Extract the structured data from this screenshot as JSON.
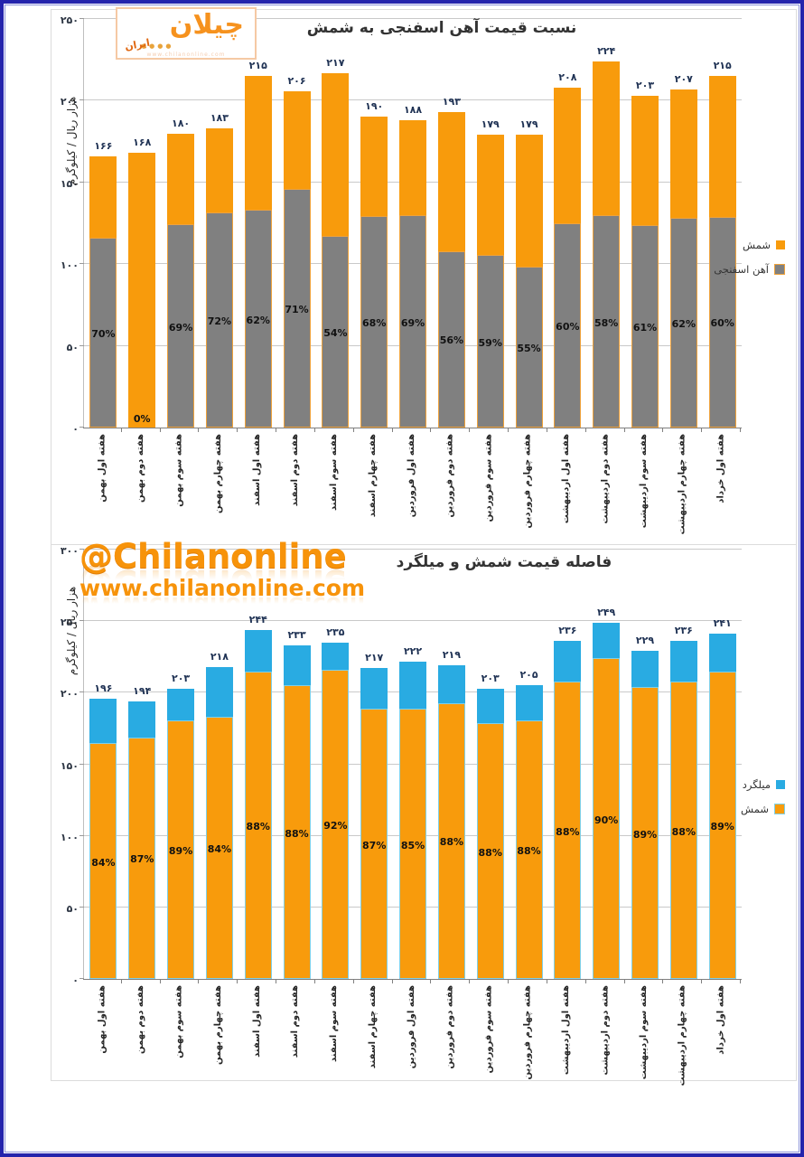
{
  "page": {
    "frame_color": "#2424AC",
    "background": "#FFFFFF"
  },
  "logo": {
    "text": "چیلان",
    "sub_text": "ایران",
    "url": "www.chilanonline.com"
  },
  "watermark": {
    "handle": "@Chilanonline",
    "url": "www.chilanonline.com"
  },
  "chart_data": [
    {
      "id": "sponge-iron-to-ingot-ratio",
      "type": "bar",
      "title": "نسبت قیمت آهن اسفنجی به شمش",
      "ylabel": "هزار ریال / کیلوگرم",
      "ylim": [
        0,
        250
      ],
      "y_ticks": [
        0,
        50,
        100,
        150,
        200,
        250
      ],
      "digit_style": "persian",
      "grid": true,
      "legend_position": "right",
      "categories": [
        "هفته اول بهمن",
        "هفته دوم بهمن",
        "هفته سوم بهمن",
        "هفته چهارم بهمن",
        "هفته اول اسفند",
        "هفته دوم اسفند",
        "هفته سوم اسفند",
        "هفته چهارم اسفند",
        "هفته اول فروردین",
        "هفته دوم فروردین",
        "هفته سوم فروردین",
        "هفته چهارم فروردین",
        "هفته اول اردیبهشت",
        "هفته دوم اردیبهشت",
        "هفته سوم اردیبهشت",
        "هفته چهارم اردیبهشت",
        "هفته اول خرداد"
      ],
      "series": [
        {
          "name": "شمش",
          "role": "total-bar",
          "color": "#F89B0C",
          "values": [
            166,
            168,
            180,
            183,
            215,
            206,
            217,
            190,
            188,
            193,
            179,
            179,
            208,
            224,
            203,
            207,
            215
          ]
        },
        {
          "name": "آهن اسفنجی",
          "role": "inner-bar-percent-of-total",
          "color": "#808080",
          "border_color": "#EFA23B",
          "percent_of_total": [
            70,
            0,
            69,
            72,
            62,
            71,
            54,
            68,
            69,
            56,
            59,
            55,
            60,
            58,
            61,
            62,
            60
          ]
        }
      ]
    },
    {
      "id": "ingot-to-rebar-gap",
      "type": "bar",
      "title": "فاصله قیمت شمش و میلگرد",
      "ylabel": "هزار ریال / کیلوگرم",
      "ylim": [
        0,
        300
      ],
      "y_ticks": [
        0,
        50,
        100,
        150,
        200,
        250,
        300
      ],
      "digit_style": "persian",
      "grid": true,
      "legend_position": "right",
      "categories": [
        "هفته اول بهمن",
        "هفته دوم بهمن",
        "هفته سوم بهمن",
        "هفته چهارم بهمن",
        "هفته اول اسفند",
        "هفته دوم اسفند",
        "هفته سوم اسفند",
        "هفته چهارم اسفند",
        "هفته اول فروردین",
        "هفته دوم فروردین",
        "هفته سوم فروردین",
        "هفته چهارم فروردین",
        "هفته اول اردیبهشت",
        "هفته دوم اردیبهشت",
        "هفته سوم اردیبهشت",
        "هفته چهارم اردیبهشت",
        "هفته اول خرداد"
      ],
      "series": [
        {
          "name": "میلگرد",
          "role": "total-bar",
          "color": "#29ABE2",
          "values": [
            196,
            194,
            203,
            218,
            244,
            233,
            235,
            217,
            222,
            219,
            203,
            205,
            236,
            249,
            229,
            236,
            241
          ]
        },
        {
          "name": "شمش",
          "role": "inner-bar-percent-of-total",
          "color": "#F89B0C",
          "border_color": "#7FD0E8",
          "percent_of_total": [
            84,
            87,
            89,
            84,
            88,
            88,
            92,
            87,
            85,
            88,
            88,
            88,
            88,
            90,
            89,
            88,
            89
          ]
        }
      ]
    }
  ]
}
